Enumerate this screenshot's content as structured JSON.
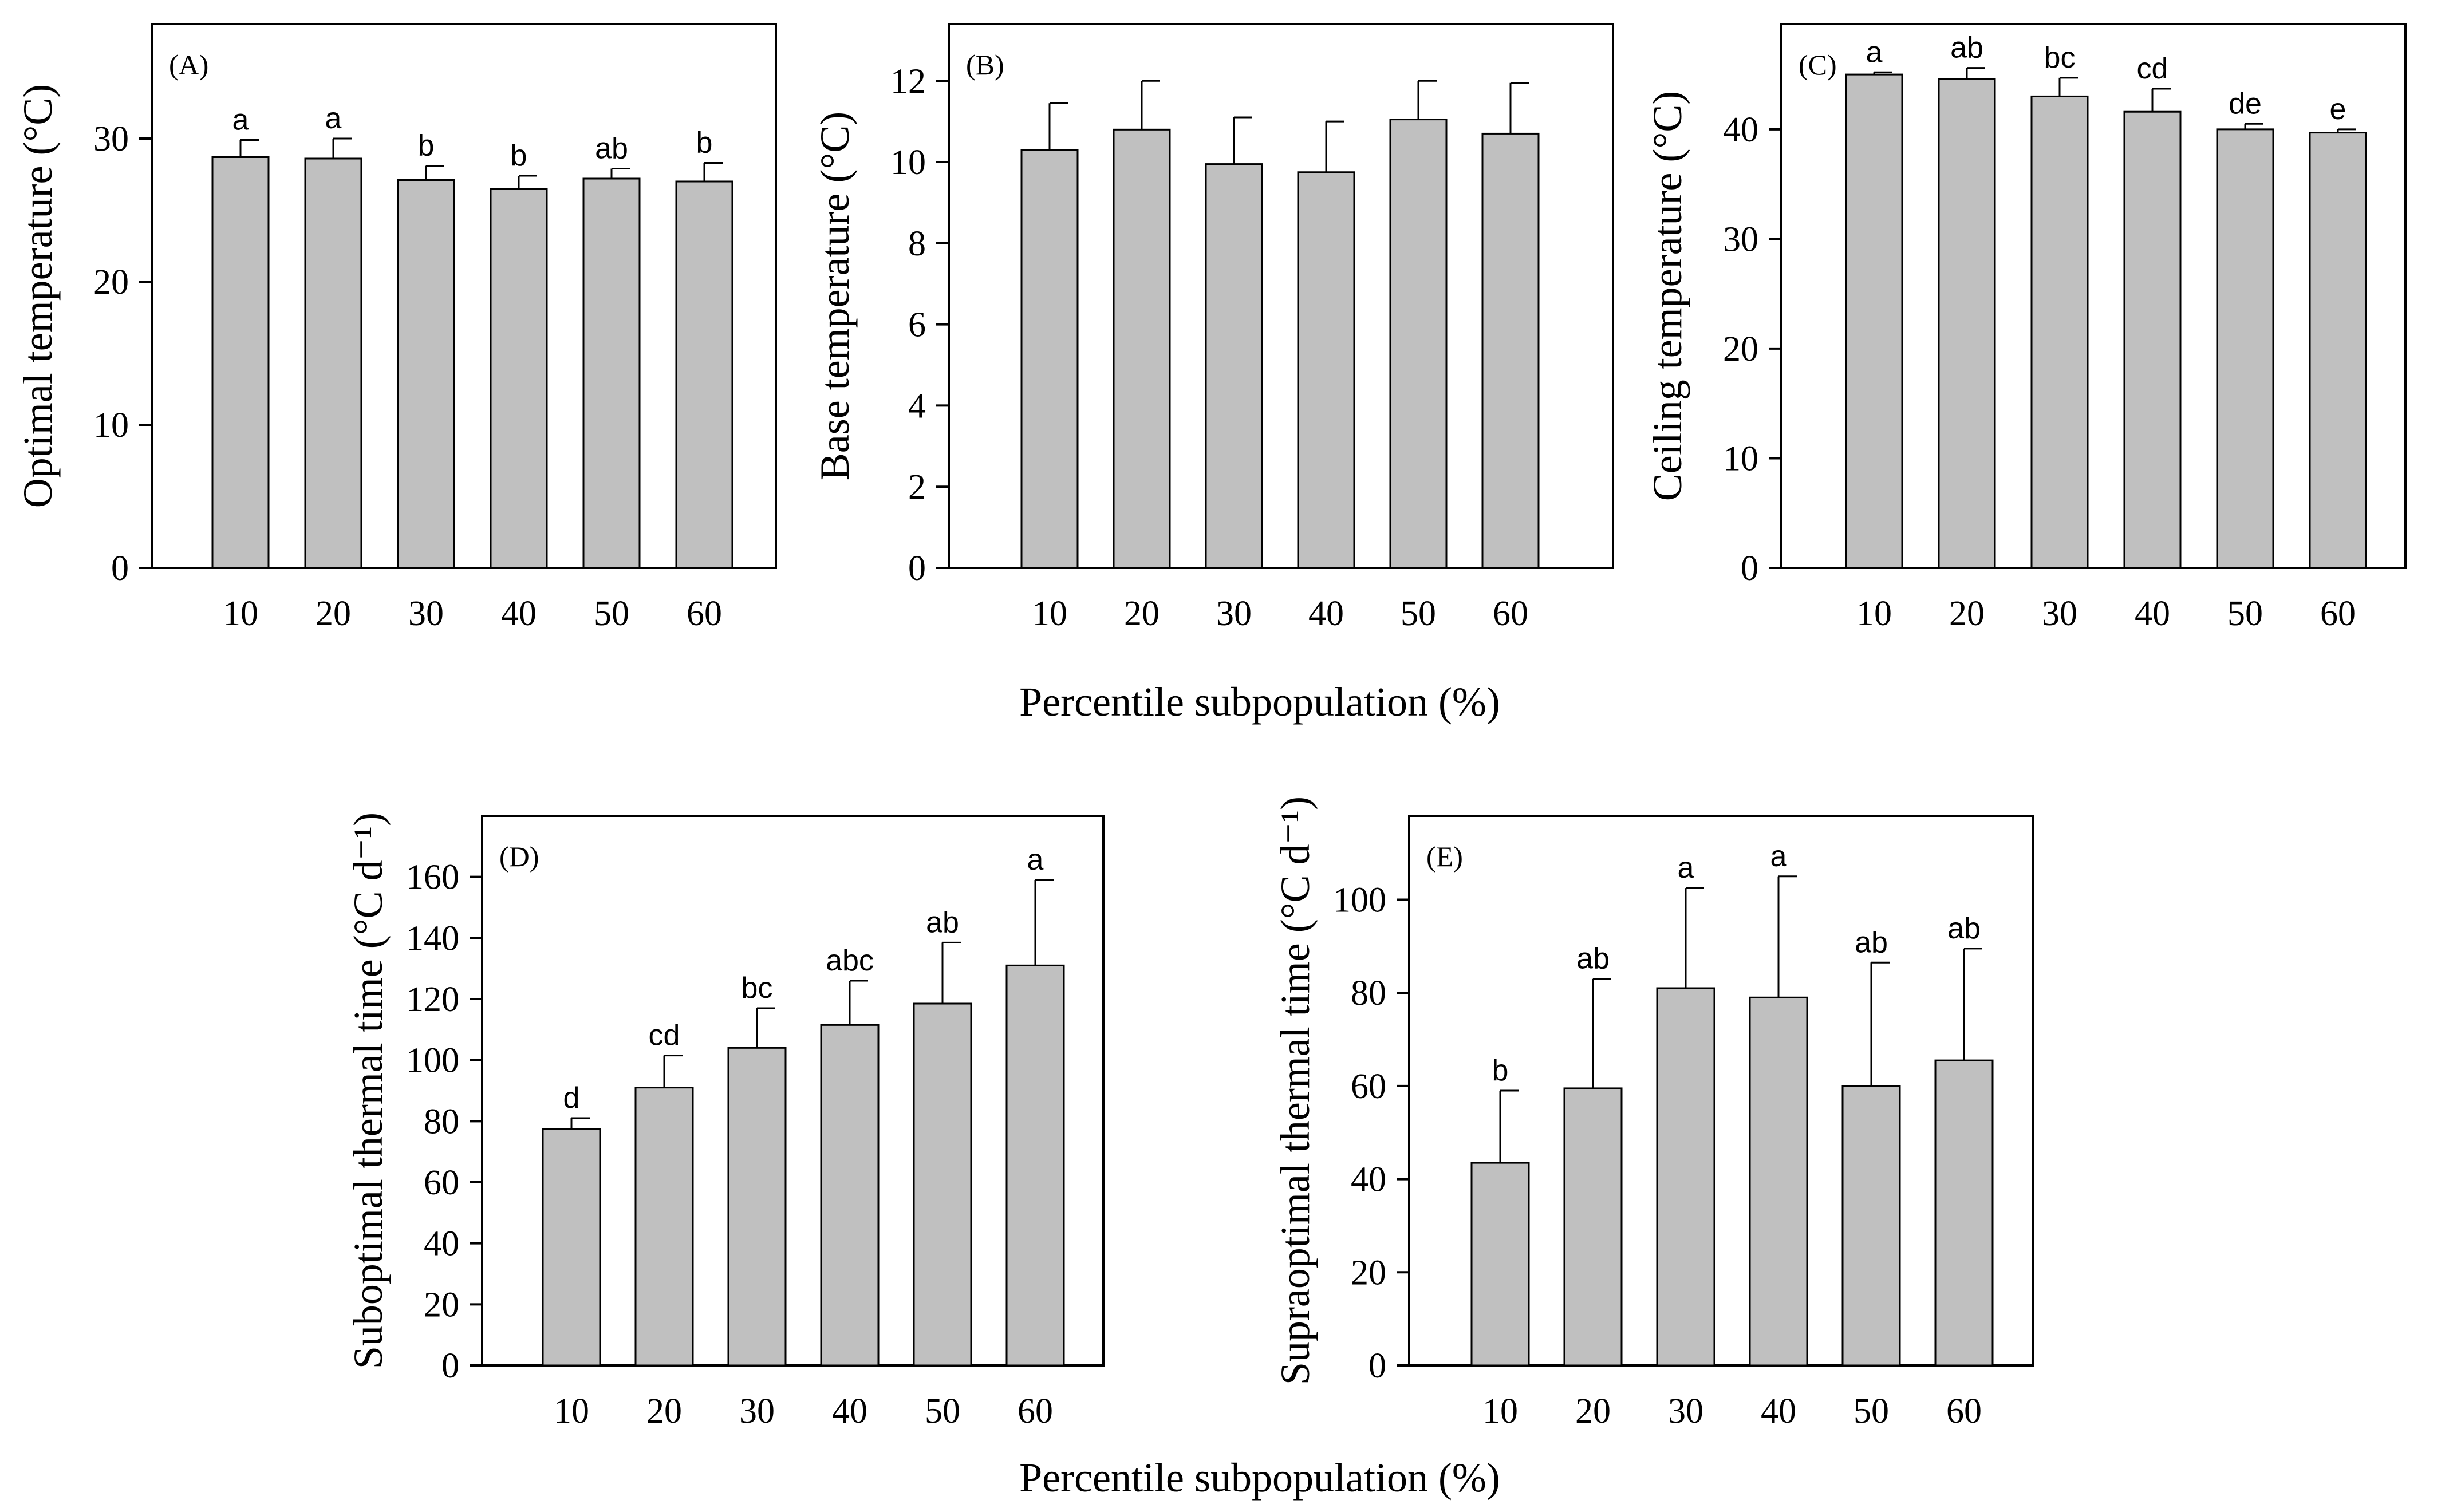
{
  "figure": {
    "shared_xlabel_top": "Percentile subpopulation (%)",
    "shared_xlabel_bottom": "Percentile subpopulation (%)"
  },
  "chart_data": [
    {
      "id": "A",
      "type": "bar",
      "panel_label": "(A)",
      "ylabel": "Optimal temperature (°C)",
      "xlabel": "",
      "categories": [
        "10",
        "20",
        "30",
        "40",
        "50",
        "60"
      ],
      "values": [
        28.7,
        28.6,
        27.1,
        26.5,
        27.2,
        27.0
      ],
      "errors": [
        1.2,
        1.4,
        1.0,
        0.9,
        0.7,
        1.3
      ],
      "significance": [
        "a",
        "a",
        "b",
        "b",
        "ab",
        "b"
      ],
      "ylim": [
        0,
        38
      ],
      "yticks": [
        0,
        10,
        20,
        30
      ]
    },
    {
      "id": "B",
      "type": "bar",
      "panel_label": "(B)",
      "ylabel": "Base temperature (°C)",
      "xlabel": "",
      "categories": [
        "10",
        "20",
        "30",
        "40",
        "50",
        "60"
      ],
      "values": [
        10.3,
        10.8,
        9.95,
        9.75,
        11.05,
        10.7
      ],
      "errors": [
        1.15,
        1.2,
        1.15,
        1.25,
        0.95,
        1.25
      ],
      "significance": [
        "",
        "",
        "",
        "",
        "",
        ""
      ],
      "ylim": [
        0,
        13.4
      ],
      "yticks": [
        0,
        2,
        4,
        6,
        8,
        10,
        12
      ]
    },
    {
      "id": "C",
      "type": "bar",
      "panel_label": "(C)",
      "ylabel": "Ceiling temperature (°C)",
      "xlabel": "",
      "categories": [
        "10",
        "20",
        "30",
        "40",
        "50",
        "60"
      ],
      "values": [
        45.0,
        44.6,
        43.0,
        41.6,
        40.0,
        39.7
      ],
      "errors": [
        0.2,
        1.0,
        1.7,
        2.1,
        0.5,
        0.3
      ],
      "significance": [
        "a",
        "ab",
        "bc",
        "cd",
        "de",
        "e"
      ],
      "ylim": [
        0,
        49.6
      ],
      "yticks": [
        0,
        10,
        20,
        30,
        40
      ]
    },
    {
      "id": "D",
      "type": "bar",
      "panel_label": "(D)",
      "ylabel": "Suboptimal thermal time (°C d⁻¹)",
      "xlabel": "Percentile subpopulation (%)",
      "categories": [
        "10",
        "20",
        "30",
        "40",
        "50",
        "60"
      ],
      "values": [
        77.5,
        91.0,
        104.0,
        111.5,
        118.5,
        131.0
      ],
      "errors": [
        3.5,
        10.5,
        13.0,
        14.5,
        20.0,
        28.0
      ],
      "significance": [
        "d",
        "cd",
        "bc",
        "abc",
        "ab",
        "a"
      ],
      "ylim": [
        0,
        180
      ],
      "yticks": [
        0,
        20,
        40,
        60,
        80,
        100,
        120,
        140,
        160
      ]
    },
    {
      "id": "E",
      "type": "bar",
      "panel_label": "(E)",
      "ylabel": "Supraoptimal thermal time (°C d⁻¹)",
      "xlabel": "Percentile subpopulation (%)",
      "categories": [
        "10",
        "20",
        "30",
        "40",
        "50",
        "60"
      ],
      "values": [
        43.5,
        59.5,
        81.0,
        79.0,
        60.0,
        65.5
      ],
      "errors": [
        15.5,
        23.5,
        21.5,
        26.0,
        26.5,
        24.0
      ],
      "significance": [
        "b",
        "ab",
        "a",
        "a",
        "ab",
        "ab"
      ],
      "ylim": [
        0,
        118
      ],
      "yticks": [
        0,
        20,
        40,
        60,
        80,
        100
      ]
    }
  ]
}
